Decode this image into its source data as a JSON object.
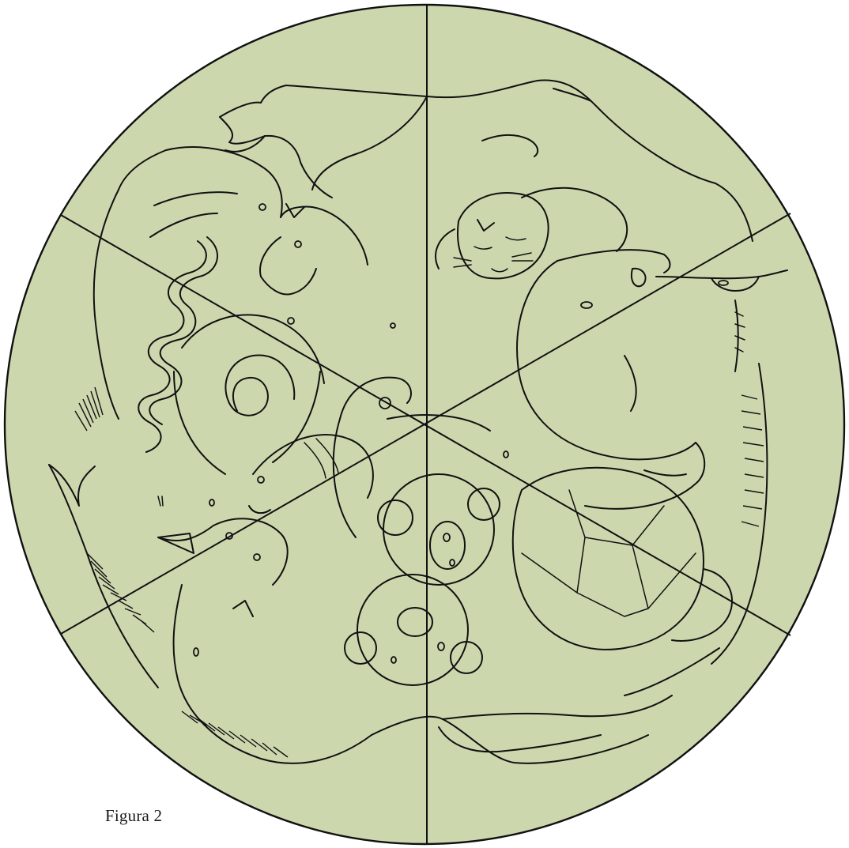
{
  "figure": {
    "caption": "Figura 2",
    "colors": {
      "disc_fill": "#ccd7ae",
      "line_ink": "#111111",
      "background": "#ffffff"
    }
  }
}
